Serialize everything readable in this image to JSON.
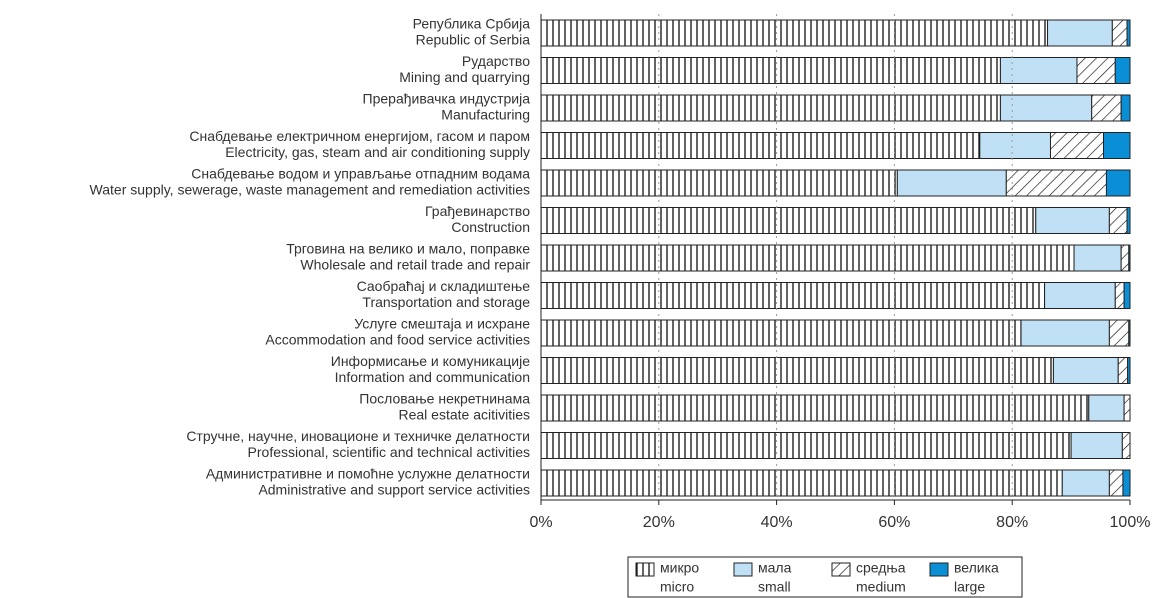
{
  "chart_data": {
    "type": "stacked-barh",
    "categories": [
      [
        "Република Србија",
        "Republic of Serbia"
      ],
      [
        "Рударство",
        "Mining and quarrying"
      ],
      [
        "Прерађивачка индустрија",
        "Manufacturing"
      ],
      [
        "Снабдевање електричном енергијом, гасом и паром",
        "Electricity, gas, steam and air conditioning supply"
      ],
      [
        "Снабдевање водом и управљање отпадним водама",
        "Water supply, sewerage, waste management and remediation activities"
      ],
      [
        "Грађевинарство",
        "Construction"
      ],
      [
        "Трговина на велико и мало, поправке",
        "Wholesale and retail trade and repair"
      ],
      [
        "Саобраћај и складиштење",
        "Transportation and  storage"
      ],
      [
        "Услуге смештаја и исхране",
        "Accommodation and food service activities"
      ],
      [
        "Информисање и комуникације",
        "Information and communication"
      ],
      [
        "Пословање некретнинама",
        "Real estate acitivities"
      ],
      [
        "Стручне, научне, иновационе и техничке делатности",
        "Professional, scientific and technical activities"
      ],
      [
        "Административне и помоћне услужне делатности",
        "Administrative and support service activities"
      ]
    ],
    "series": [
      {
        "name": [
          "микро",
          "micro"
        ],
        "color": "#ffffff",
        "hatch": "vertical",
        "values": [
          86,
          78,
          78,
          74.5,
          60.5,
          84,
          90.5,
          85.5,
          81.5,
          87,
          93,
          90,
          88.5
        ]
      },
      {
        "name": [
          "мала",
          "small"
        ],
        "color": "#bfe0f5",
        "hatch": "none",
        "values": [
          11,
          13,
          15.5,
          12,
          18.5,
          12.5,
          8,
          12,
          15,
          11,
          6,
          8.7,
          8
        ]
      },
      {
        "name": [
          "средња",
          "medium"
        ],
        "color": "#ffffff",
        "hatch": "diagonal",
        "values": [
          2.5,
          6.5,
          5,
          9,
          17,
          3,
          1.3,
          1.5,
          3.3,
          1.6,
          1,
          1.3,
          2.3
        ]
      },
      {
        "name": [
          "велика",
          "large"
        ],
        "color": "#0a8fd6",
        "hatch": "none",
        "values": [
          0.5,
          2.5,
          1.5,
          4.5,
          4,
          0.5,
          0.2,
          1,
          0.2,
          0.4,
          0,
          0,
          1.2
        ]
      }
    ],
    "xlim": [
      0,
      100
    ],
    "xticks": [
      {
        "value": 0,
        "label": "0%"
      },
      {
        "value": 20,
        "label": "20%"
      },
      {
        "value": 40,
        "label": "40%"
      },
      {
        "value": 60,
        "label": "60%"
      },
      {
        "value": 80,
        "label": "80%"
      },
      {
        "value": 100,
        "label": "100%"
      }
    ],
    "grid": true,
    "legend": "bottom"
  }
}
